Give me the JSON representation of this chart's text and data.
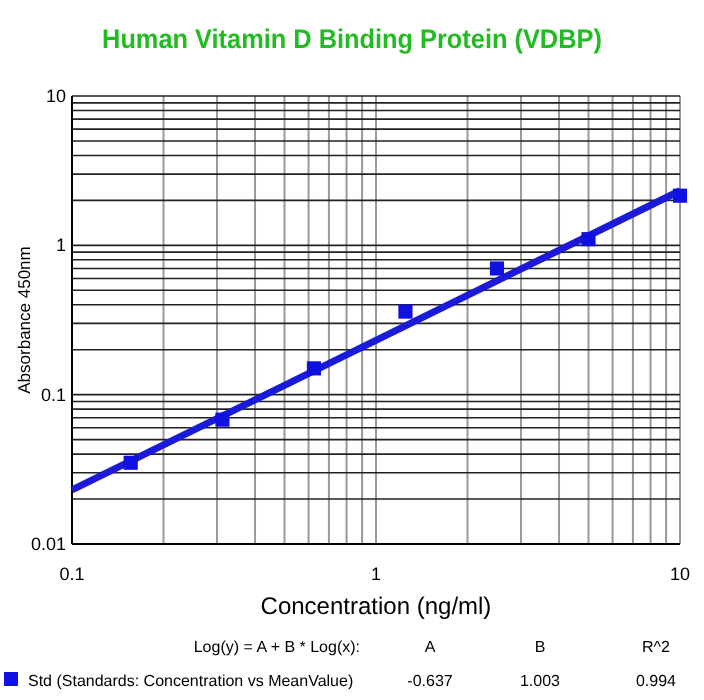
{
  "chart_data": {
    "type": "scatter",
    "title": "Human Vitamin D Binding Protein (VDBP)",
    "xlabel": "Concentration (ng/ml)",
    "ylabel": "Absorbance 450nm",
    "log": "xy",
    "grid": true,
    "legend": "bottom",
    "xlim": [
      0.1,
      10
    ],
    "xticks": [
      0.1,
      1,
      10
    ],
    "ylim": [
      0.01,
      10
    ],
    "yticks": [
      0.01,
      0.1,
      1,
      10
    ],
    "series": [
      {
        "name": "Std (Standards: Concentration vs MeanValue)",
        "color": "#1010e0",
        "marker": "square",
        "x": [
          0.156,
          0.3125,
          0.625,
          1.25,
          2.5,
          5,
          10
        ],
        "values": [
          0.035,
          0.068,
          0.15,
          0.36,
          0.7,
          1.1,
          2.15
        ]
      },
      {
        "type": "line",
        "marker": "none",
        "color": "#1a1ad8",
        "x": [
          0.1,
          10
        ],
        "values": [
          0.023,
          2.32
        ]
      }
    ],
    "annotations": [
      "Log(y) = A + B * Log(x):",
      "A",
      "B",
      "R^2",
      "-0.637",
      "1.003",
      "0.994"
    ]
  }
}
